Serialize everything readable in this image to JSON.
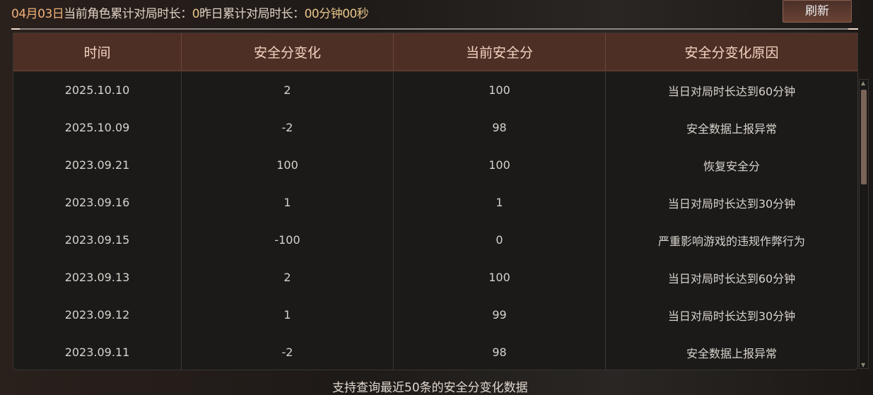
{
  "header": {
    "date": "04月03日",
    "current_label": "当前角色累计对局时长：",
    "current_value": "0",
    "yesterday_label": "昨日累计对局时长：",
    "yesterday_value": "00分钟00秒",
    "refresh_label": "刷新"
  },
  "table": {
    "columns": [
      "时间",
      "安全分变化",
      "当前安全分",
      "安全分变化原因"
    ],
    "rows": [
      [
        "2025.10.10",
        "2",
        "100",
        "当日对局时长达到60分钟"
      ],
      [
        "2025.10.09",
        "-2",
        "98",
        "安全数据上报异常"
      ],
      [
        "2023.09.21",
        "100",
        "100",
        "恢复安全分"
      ],
      [
        "2023.09.16",
        "1",
        "1",
        "当日对局时长达到30分钟"
      ],
      [
        "2023.09.15",
        "-100",
        "0",
        "严重影响游戏的违规作弊行为"
      ],
      [
        "2023.09.13",
        "2",
        "100",
        "当日对局时长达到60分钟"
      ],
      [
        "2023.09.12",
        "1",
        "99",
        "当日对局时长达到30分钟"
      ],
      [
        "2023.09.11",
        "-2",
        "98",
        "安全数据上报异常"
      ]
    ]
  },
  "footer": "支持查询最近50条的安全分变化数据"
}
